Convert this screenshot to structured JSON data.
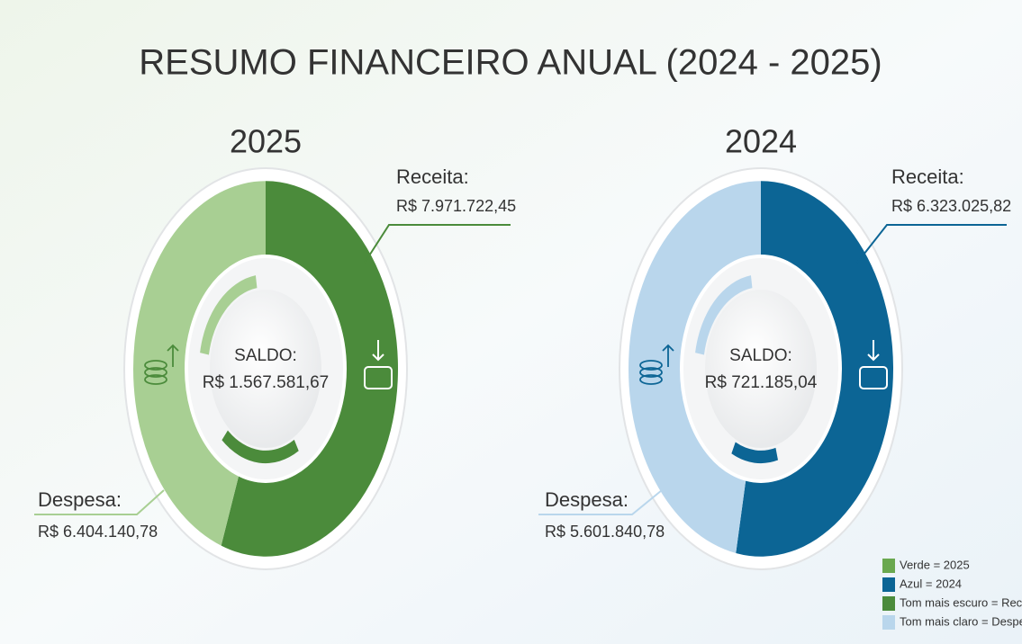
{
  "title": "RESUMO FINANCEIRO ANUAL (2024 - 2025)",
  "chart_data": [
    {
      "type": "donut",
      "title": "2025",
      "categories": [
        "Receita:",
        "Despesa:"
      ],
      "values": [
        7971722.45,
        6404140.78
      ],
      "value_labels": [
        "R$ 7.971.722,45",
        "R$ 6.404.140,78"
      ],
      "colors": [
        "#4b8b3b",
        "#a8cf93"
      ],
      "center_title": "SALDO:",
      "center_value": 1567581.67,
      "center_value_label": "R$ 1.567.581,67"
    },
    {
      "type": "donut",
      "title": "2024",
      "categories": [
        "Receita:",
        "Despesa:"
      ],
      "values": [
        6323025.82,
        5601840.78
      ],
      "value_labels": [
        "R$ 6.323.025,82",
        "R$ 5.601.840,78"
      ],
      "colors": [
        "#0c6595",
        "#b9d6ec"
      ],
      "center_title": "SALDO:",
      "center_value": 721185.04,
      "center_value_label": "R$ 721.185,04"
    }
  ],
  "legend": [
    {
      "color": "#6aa84f",
      "label": "Verde = 2025"
    },
    {
      "color": "#0c6595",
      "label": "Azul = 2024"
    },
    {
      "color": "#4b8b3b",
      "label": "Tom mais escuro = Receita"
    },
    {
      "color": "#b9d6ec",
      "label": "Tom mais claro = Despesa"
    }
  ]
}
